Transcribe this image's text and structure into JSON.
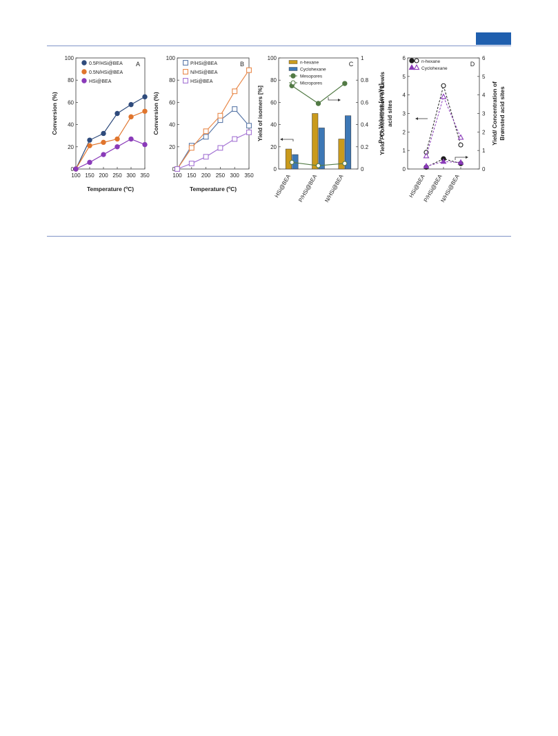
{
  "page": {
    "accent_color": "#1f5fae",
    "rule_color": "#7f93c7"
  },
  "chart_data": [
    {
      "panel": "A",
      "type": "line",
      "xlabel": "Temperature (ºC)",
      "ylabel": "Conversion (%)",
      "x": [
        100,
        150,
        200,
        250,
        300,
        350
      ],
      "xlim": [
        100,
        350
      ],
      "ylim": [
        0,
        100
      ],
      "xticks": [
        "100",
        "150",
        "200",
        "250",
        "300",
        "350"
      ],
      "yticks": [
        "0",
        "20",
        "40",
        "60",
        "80",
        "100"
      ],
      "legend_position": "top-left",
      "series": [
        {
          "name": "0.5P/HSi@BEA",
          "color": "#2f4b7c",
          "marker": "filled-circle",
          "values": [
            0,
            26,
            32,
            50,
            58,
            65
          ]
        },
        {
          "name": "0.5N/HSi@BEA",
          "color": "#e0752d",
          "marker": "filled-circle",
          "values": [
            0,
            21,
            24,
            27,
            47,
            52
          ]
        },
        {
          "name": "HSi@BEA",
          "color": "#8a3ab9",
          "marker": "filled-circle",
          "values": [
            0,
            6,
            13,
            20,
            27,
            22
          ]
        }
      ]
    },
    {
      "panel": "B",
      "type": "line",
      "xlabel": "Temperature (ºC)",
      "ylabel": "Conversion (%)",
      "x": [
        100,
        150,
        200,
        250,
        300,
        350
      ],
      "xlim": [
        100,
        350
      ],
      "ylim": [
        0,
        100
      ],
      "xticks": [
        "100",
        "150",
        "200",
        "250",
        "300",
        "350"
      ],
      "yticks": [
        "0",
        "20",
        "40",
        "60",
        "80",
        "100"
      ],
      "legend_position": "top-left",
      "series": [
        {
          "name": "P/HSi@BEA",
          "color": "#5a78a8",
          "marker": "open-square",
          "values": [
            0,
            21,
            29,
            44,
            54,
            39
          ]
        },
        {
          "name": "N/HSi@BEA",
          "color": "#e9894a",
          "marker": "open-square",
          "values": [
            0,
            19,
            34,
            48,
            70,
            89
          ]
        },
        {
          "name": "HSi@BEA",
          "color": "#a474d4",
          "marker": "open-square",
          "values": [
            0,
            5,
            11,
            19,
            27,
            33
          ]
        }
      ]
    },
    {
      "panel": "C",
      "type": "bar",
      "categories": [
        "HSi@BEA",
        "P/HSi@BEA",
        "N/HSi@BEA"
      ],
      "ylabel": "Yield of isomers [%]",
      "y2label": "Pore Volumes [cm³/g]",
      "ylim": [
        0,
        100
      ],
      "y2lim": [
        0,
        1
      ],
      "yticks": [
        "0",
        "20",
        "40",
        "60",
        "80",
        "100"
      ],
      "y2ticks": [
        "0",
        "0.2",
        "0.4",
        "0.6",
        "0.8",
        "1"
      ],
      "legend_position": "top",
      "bar_series": [
        {
          "name": "n-hexane",
          "color": "#c99a1c",
          "values": [
            18,
            50,
            27
          ]
        },
        {
          "name": "Cyclohexane",
          "color": "#3d78b6",
          "values": [
            13,
            37,
            48
          ]
        }
      ],
      "line_series": [
        {
          "name": "Mesopores",
          "color": "#527a45",
          "marker": "filled-circle",
          "axis": "right",
          "values": [
            0.75,
            0.59,
            0.77
          ]
        },
        {
          "name": "Micropores",
          "color": "#527a45",
          "marker": "open-circle",
          "axis": "right",
          "values": [
            0.06,
            0.03,
            0.05
          ]
        }
      ]
    },
    {
      "panel": "D",
      "type": "line",
      "categories": [
        "HSi@BEA",
        "P/HSi@BEA",
        "N/HSi@BEA"
      ],
      "ylabel": "Yield / Concentration of Lewis acid sites",
      "y2label": "Yield/ Concentration of Brønsted acid sites",
      "ylim": [
        0,
        6
      ],
      "y2lim": [
        0,
        6
      ],
      "yticks": [
        "0",
        "1",
        "2",
        "3",
        "4",
        "5",
        "6"
      ],
      "y2ticks": [
        "0",
        "1",
        "2",
        "3",
        "4",
        "5",
        "6"
      ],
      "legend_position": "top-left",
      "series": [
        {
          "name": "n-hexane",
          "color": "#1c1c1c",
          "axis": "left",
          "marker": "open-circle",
          "values": [
            0.9,
            4.5,
            1.3
          ]
        },
        {
          "name": "Cyclohexane",
          "color": "#8a3ab9",
          "axis": "left",
          "marker": "open-triangle",
          "values": [
            0.7,
            3.9,
            1.7
          ]
        },
        {
          "name": "n-hexane",
          "color": "#1c1c1c",
          "axis": "right",
          "marker": "filled-circle",
          "values": [
            0.1,
            0.55,
            0.3
          ]
        },
        {
          "name": "Cyclohexane",
          "color": "#8a3ab9",
          "axis": "right",
          "marker": "filled-triangle",
          "values": [
            0.15,
            0.4,
            0.35
          ]
        }
      ]
    }
  ]
}
